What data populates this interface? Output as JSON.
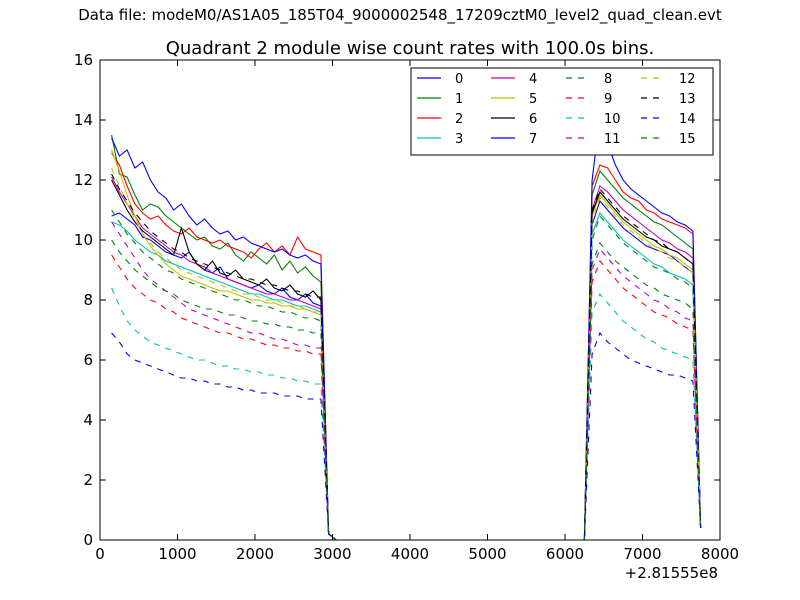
{
  "header": {
    "suptitle": "Data file: modeM0/AS1A05_185T04_9000002548_17209cztM0_level2_quad_clean.evt"
  },
  "chart_data": {
    "type": "line",
    "title": "Quadrant 2 module wise count rates with 100.0s bins.",
    "xlabel": "",
    "ylabel": "",
    "x_offset_label": "+2.81555e8",
    "xlim": [
      0,
      8000
    ],
    "ylim": [
      0,
      16
    ],
    "xticks": [
      0,
      1000,
      2000,
      3000,
      4000,
      5000,
      6000,
      7000,
      8000
    ],
    "yticks": [
      0,
      2,
      4,
      6,
      8,
      10,
      12,
      14,
      16
    ],
    "grid": false,
    "legend": {
      "placement": "top-right",
      "columns": 4
    },
    "x": [
      150,
      250,
      350,
      450,
      550,
      650,
      750,
      850,
      950,
      1050,
      1150,
      1250,
      1350,
      1450,
      1550,
      1650,
      1750,
      1850,
      1950,
      2050,
      2150,
      2250,
      2350,
      2450,
      2550,
      2650,
      2750,
      2850,
      2950,
      3050,
      3500,
      4000,
      4500,
      5000,
      5500,
      6000,
      6250,
      6350,
      6450,
      6550,
      6650,
      6750,
      6850,
      6950,
      7050,
      7150,
      7250,
      7350,
      7450,
      7550,
      7650,
      7750
    ],
    "series": [
      {
        "name": "0",
        "color": "#0000ff",
        "dash": "solid",
        "values": [
          10.8,
          10.9,
          10.7,
          10.5,
          10.1,
          10.0,
          9.8,
          9.6,
          9.5,
          9.4,
          9.6,
          9.2,
          9.0,
          8.9,
          9.1,
          8.7,
          8.6,
          8.5,
          8.4,
          8.5,
          8.3,
          8.2,
          8.4,
          8.1,
          8.0,
          8.2,
          7.9,
          7.8,
          0.2,
          0.0,
          0.0,
          0.0,
          0.0,
          0.0,
          0.0,
          0.0,
          0.0,
          10.5,
          11.3,
          11.0,
          10.7,
          10.4,
          10.2,
          10.0,
          9.8,
          9.7,
          9.6,
          9.5,
          9.3,
          9.1,
          8.9,
          0.4
        ]
      },
      {
        "name": "1",
        "color": "#008000",
        "dash": "solid",
        "values": [
          13.5,
          12.2,
          12.1,
          11.5,
          11.0,
          11.2,
          11.1,
          10.8,
          10.6,
          10.4,
          10.2,
          10.0,
          10.1,
          9.8,
          9.7,
          9.9,
          9.5,
          9.3,
          9.6,
          9.4,
          9.2,
          9.5,
          9.0,
          9.3,
          8.9,
          9.1,
          8.8,
          8.6,
          0.2,
          0.0,
          0.0,
          0.0,
          0.0,
          0.0,
          0.0,
          0.0,
          0.0,
          11.5,
          12.3,
          12.0,
          11.7,
          11.4,
          11.2,
          11.0,
          10.8,
          10.6,
          10.5,
          10.3,
          10.1,
          9.9,
          9.7,
          0.4
        ]
      },
      {
        "name": "2",
        "color": "#ff0000",
        "dash": "solid",
        "values": [
          12.9,
          12.5,
          11.8,
          11.2,
          10.9,
          10.7,
          10.8,
          10.5,
          10.3,
          10.2,
          10.4,
          10.1,
          10.0,
          9.9,
          10.0,
          9.8,
          9.7,
          9.6,
          9.4,
          9.7,
          9.9,
          9.6,
          9.8,
          9.5,
          10.1,
          9.7,
          9.6,
          9.5,
          0.2,
          0.0,
          0.0,
          0.0,
          0.0,
          0.0,
          0.0,
          0.0,
          0.0,
          11.8,
          12.5,
          12.4,
          12.0,
          11.6,
          11.4,
          11.3,
          11.0,
          10.9,
          10.7,
          10.6,
          10.5,
          10.4,
          10.2,
          0.4
        ]
      },
      {
        "name": "3",
        "color": "#00bfbf",
        "dash": "solid",
        "values": [
          10.6,
          10.5,
          10.3,
          10.0,
          9.8,
          9.6,
          9.5,
          9.3,
          9.2,
          9.1,
          9.0,
          8.9,
          8.8,
          8.7,
          8.6,
          8.5,
          8.4,
          8.3,
          8.2,
          8.2,
          8.1,
          8.0,
          8.0,
          7.9,
          7.8,
          7.8,
          7.7,
          7.6,
          0.2,
          0.0,
          0.0,
          0.0,
          0.0,
          0.0,
          0.0,
          0.0,
          0.0,
          10.2,
          10.9,
          10.6,
          10.3,
          10.0,
          9.8,
          9.6,
          9.4,
          9.2,
          9.1,
          8.9,
          8.8,
          8.7,
          8.5,
          0.4
        ]
      },
      {
        "name": "4",
        "color": "#bf00bf",
        "dash": "solid",
        "values": [
          12.1,
          11.6,
          11.2,
          10.8,
          10.4,
          10.2,
          10.0,
          9.8,
          9.6,
          9.5,
          9.3,
          9.2,
          9.1,
          8.9,
          8.8,
          8.7,
          8.6,
          8.5,
          8.4,
          8.3,
          8.2,
          8.2,
          8.1,
          8.0,
          8.0,
          7.9,
          7.8,
          7.7,
          0.2,
          0.0,
          0.0,
          0.0,
          0.0,
          0.0,
          0.0,
          0.0,
          0.0,
          11.0,
          11.8,
          11.6,
          11.3,
          11.0,
          10.8,
          10.6,
          10.4,
          10.2,
          10.0,
          9.9,
          9.7,
          9.6,
          9.4,
          0.4
        ]
      },
      {
        "name": "5",
        "color": "#bfbf00",
        "dash": "solid",
        "values": [
          13.0,
          12.3,
          11.5,
          10.8,
          10.2,
          9.8,
          9.5,
          9.2,
          9.0,
          8.8,
          8.7,
          8.6,
          8.5,
          8.4,
          8.3,
          8.3,
          8.2,
          8.1,
          8.0,
          8.0,
          7.9,
          7.9,
          7.8,
          7.8,
          7.7,
          7.7,
          7.6,
          7.5,
          0.2,
          0.0,
          0.0,
          0.0,
          0.0,
          0.0,
          0.0,
          0.0,
          0.0,
          10.8,
          11.5,
          11.2,
          10.9,
          10.6,
          10.4,
          10.2,
          10.0,
          9.8,
          9.7,
          9.5,
          9.4,
          9.2,
          9.0,
          0.4
        ]
      },
      {
        "name": "6",
        "color": "#000000",
        "dash": "solid",
        "values": [
          12.0,
          11.5,
          11.0,
          10.6,
          10.3,
          10.1,
          9.9,
          9.7,
          9.5,
          10.4,
          9.6,
          9.2,
          9.0,
          9.3,
          8.9,
          8.8,
          9.0,
          8.7,
          8.6,
          8.5,
          8.7,
          8.4,
          8.3,
          8.5,
          8.2,
          8.1,
          8.3,
          8.0,
          0.2,
          0.0,
          0.0,
          0.0,
          0.0,
          0.0,
          0.0,
          0.0,
          0.0,
          10.9,
          11.6,
          11.3,
          11.0,
          10.7,
          10.5,
          10.3,
          10.1,
          10.0,
          9.8,
          9.7,
          9.6,
          9.4,
          9.2,
          0.4
        ]
      },
      {
        "name": "7",
        "color": "#0000ff",
        "dash": "solid",
        "values": [
          13.4,
          12.8,
          13.0,
          12.4,
          12.6,
          12.0,
          11.6,
          11.4,
          11.0,
          11.2,
          10.8,
          10.5,
          10.7,
          10.4,
          10.2,
          10.3,
          10.0,
          10.1,
          9.9,
          9.8,
          9.7,
          9.6,
          9.7,
          9.5,
          9.4,
          9.5,
          9.3,
          9.2,
          0.2,
          0.0,
          0.0,
          0.0,
          0.0,
          0.0,
          0.0,
          0.0,
          0.0,
          12.0,
          14.1,
          13.2,
          12.5,
          12.0,
          11.7,
          11.5,
          11.3,
          11.1,
          10.9,
          10.8,
          10.6,
          10.5,
          10.3,
          0.4
        ]
      },
      {
        "name": "8",
        "color": "#008000",
        "dash": "dash",
        "values": [
          11.0,
          10.6,
          10.2,
          9.9,
          9.6,
          9.4,
          9.2,
          9.0,
          8.9,
          8.7,
          8.6,
          8.5,
          8.4,
          8.3,
          8.2,
          8.1,
          8.0,
          8.0,
          7.9,
          7.8,
          7.8,
          7.7,
          7.6,
          7.6,
          7.5,
          7.4,
          7.4,
          7.3,
          0.2,
          0.0,
          0.0,
          0.0,
          0.0,
          0.0,
          0.0,
          0.0,
          0.0,
          10.0,
          10.8,
          10.5,
          10.2,
          9.9,
          9.7,
          9.5,
          9.3,
          9.1,
          9.0,
          8.9,
          8.7,
          8.6,
          8.4,
          0.4
        ]
      },
      {
        "name": "9",
        "color": "#ff0000",
        "dash": "dash",
        "values": [
          9.5,
          9.1,
          8.7,
          8.4,
          8.2,
          8.0,
          7.9,
          7.7,
          7.6,
          7.4,
          7.3,
          7.2,
          7.1,
          7.0,
          6.9,
          6.9,
          6.8,
          6.7,
          6.7,
          6.6,
          6.5,
          6.5,
          6.4,
          6.4,
          6.3,
          6.3,
          6.2,
          6.2,
          0.2,
          0.0,
          0.0,
          0.0,
          0.0,
          0.0,
          0.0,
          0.0,
          0.0,
          8.6,
          9.3,
          9.0,
          8.7,
          8.4,
          8.2,
          8.0,
          7.8,
          7.6,
          7.5,
          7.4,
          7.2,
          7.1,
          7.0,
          0.4
        ]
      },
      {
        "name": "10",
        "color": "#00bfbf",
        "dash": "dash",
        "values": [
          8.4,
          7.8,
          7.3,
          7.0,
          6.8,
          6.6,
          6.5,
          6.4,
          6.3,
          6.2,
          6.1,
          6.0,
          6.0,
          5.9,
          5.8,
          5.8,
          5.7,
          5.7,
          5.6,
          5.6,
          5.5,
          5.5,
          5.4,
          5.4,
          5.3,
          5.3,
          5.2,
          5.2,
          0.2,
          0.0,
          0.0,
          0.0,
          0.0,
          0.0,
          0.0,
          0.0,
          0.0,
          7.6,
          8.2,
          7.9,
          7.6,
          7.3,
          7.1,
          6.9,
          6.7,
          6.6,
          6.4,
          6.3,
          6.2,
          6.1,
          6.0,
          0.4
        ]
      },
      {
        "name": "11",
        "color": "#bf00bf",
        "dash": "dash",
        "values": [
          10.6,
          10.2,
          9.8,
          9.4,
          9.0,
          8.7,
          8.5,
          8.3,
          8.1,
          7.9,
          7.7,
          7.6,
          7.5,
          7.4,
          7.3,
          7.2,
          7.1,
          7.0,
          6.9,
          6.9,
          6.8,
          6.7,
          6.7,
          6.6,
          6.5,
          6.5,
          6.4,
          6.4,
          0.2,
          0.0,
          0.0,
          0.0,
          0.0,
          0.0,
          0.0,
          0.0,
          0.0,
          9.0,
          9.7,
          9.4,
          9.1,
          8.8,
          8.6,
          8.4,
          8.2,
          8.0,
          7.9,
          7.7,
          7.6,
          7.4,
          7.3,
          0.4
        ]
      },
      {
        "name": "12",
        "color": "#bfbf00",
        "dash": "dash",
        "values": [
          12.4,
          11.8,
          11.2,
          10.7,
          10.2,
          9.9,
          9.6,
          9.4,
          9.2,
          9.0,
          8.9,
          8.8,
          8.7,
          8.6,
          8.5,
          8.4,
          8.3,
          8.2,
          8.2,
          8.1,
          8.0,
          8.0,
          7.9,
          7.8,
          7.8,
          7.7,
          7.6,
          7.6,
          0.2,
          0.0,
          0.0,
          0.0,
          0.0,
          0.0,
          0.0,
          0.0,
          0.0,
          10.6,
          11.4,
          11.1,
          10.8,
          10.5,
          10.3,
          10.1,
          9.9,
          9.7,
          9.6,
          9.4,
          9.3,
          9.1,
          8.9,
          0.4
        ]
      },
      {
        "name": "13",
        "color": "#000000",
        "dash": "dash",
        "values": [
          12.2,
          11.7,
          11.3,
          10.9,
          10.6,
          10.3,
          10.1,
          9.9,
          9.7,
          9.6,
          9.4,
          9.3,
          9.2,
          9.1,
          9.0,
          8.9,
          8.8,
          8.7,
          8.7,
          8.6,
          8.5,
          8.5,
          8.4,
          8.3,
          8.3,
          8.2,
          8.1,
          8.1,
          0.2,
          0.0,
          0.0,
          0.0,
          0.0,
          0.0,
          0.0,
          0.0,
          0.0,
          11.0,
          11.7,
          11.4,
          11.1,
          10.8,
          10.6,
          10.4,
          10.2,
          10.0,
          9.9,
          9.7,
          9.6,
          9.4,
          9.2,
          0.4
        ]
      },
      {
        "name": "14",
        "color": "#0000ff",
        "dash": "dash",
        "values": [
          6.9,
          6.6,
          6.2,
          6.0,
          5.9,
          5.8,
          5.7,
          5.6,
          5.5,
          5.4,
          5.4,
          5.3,
          5.3,
          5.2,
          5.2,
          5.1,
          5.1,
          5.0,
          5.0,
          4.9,
          4.9,
          4.9,
          4.8,
          4.8,
          4.8,
          4.7,
          4.7,
          4.7,
          0.2,
          0.0,
          0.0,
          0.0,
          0.0,
          0.0,
          0.0,
          0.0,
          0.0,
          6.2,
          6.9,
          6.6,
          6.4,
          6.2,
          6.0,
          5.9,
          5.8,
          5.7,
          5.6,
          5.5,
          5.5,
          5.4,
          5.3,
          0.4
        ]
      },
      {
        "name": "15",
        "color": "#008000",
        "dash": "dash",
        "values": [
          10.0,
          9.6,
          9.3,
          9.0,
          8.8,
          8.6,
          8.4,
          8.3,
          8.2,
          8.0,
          7.9,
          7.8,
          7.7,
          7.7,
          7.6,
          7.5,
          7.5,
          7.4,
          7.3,
          7.3,
          7.2,
          7.2,
          7.1,
          7.1,
          7.0,
          7.0,
          6.9,
          6.9,
          0.2,
          0.0,
          0.0,
          0.0,
          0.0,
          0.0,
          0.0,
          0.0,
          0.0,
          9.2,
          9.9,
          9.6,
          9.3,
          9.1,
          8.9,
          8.7,
          8.5,
          8.4,
          8.2,
          8.1,
          8.0,
          7.9,
          7.7,
          0.4
        ]
      }
    ]
  }
}
